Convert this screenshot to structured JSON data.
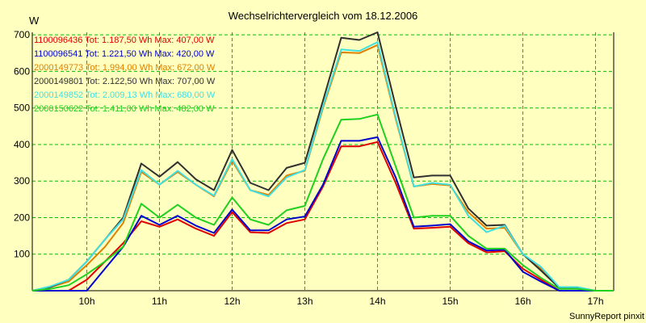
{
  "chart_data": {
    "type": "line",
    "title": "Wechselrichtervergleich vom 18.12.2006",
    "ylabel": "W",
    "xlabel": "",
    "credit": "SunnyReport pinxit",
    "ylim": [
      0,
      707
    ],
    "y_ticks": [
      100,
      200,
      300,
      400,
      500,
      600,
      700
    ],
    "x_range": [
      9.25,
      17.25
    ],
    "x_ticks": [
      {
        "value": 10,
        "label": "10h"
      },
      {
        "value": 11,
        "label": "11h"
      },
      {
        "value": 12,
        "label": "12h"
      },
      {
        "value": 13,
        "label": "13h"
      },
      {
        "value": 14,
        "label": "14h"
      },
      {
        "value": 15,
        "label": "15h"
      },
      {
        "value": 16,
        "label": "16h"
      },
      {
        "value": 17,
        "label": "17h"
      }
    ],
    "grid": true,
    "legend_position": "top-left",
    "x": [
      9.25,
      9.5,
      9.75,
      10,
      10.25,
      10.5,
      10.75,
      11,
      11.25,
      11.5,
      11.75,
      12,
      12.25,
      12.5,
      12.75,
      13,
      13.25,
      13.5,
      13.75,
      14,
      14.25,
      14.5,
      14.75,
      15,
      15.25,
      15.5,
      15.75,
      16,
      16.25,
      16.5,
      16.75,
      17,
      17.25
    ],
    "series": [
      {
        "name": "1100096436",
        "legend": "1100096436 Tot: 1.187,50 Wh Max: 407,00 W",
        "color": "#e00000",
        "values": [
          0,
          0,
          0,
          30,
          80,
          130,
          190,
          175,
          195,
          170,
          150,
          215,
          160,
          158,
          185,
          195,
          285,
          395,
          395,
          407,
          295,
          170,
          172,
          175,
          130,
          105,
          108,
          60,
          30,
          0,
          0,
          0,
          0
        ]
      },
      {
        "name": "1100096541",
        "legend": "1100096541 Tot: 1.221,50 Wh Max: 420,00 W",
        "color": "#0000d0",
        "values": [
          0,
          0,
          0,
          0,
          60,
          120,
          205,
          180,
          205,
          178,
          158,
          222,
          165,
          165,
          195,
          203,
          290,
          410,
          410,
          420,
          310,
          175,
          178,
          182,
          135,
          110,
          112,
          52,
          25,
          0,
          0,
          0,
          0
        ]
      },
      {
        "name": "2000149773",
        "legend": "2000149773 Tot: 1.994,00 Wh Max: 672,00 W",
        "color": "#e08000",
        "values": [
          0,
          10,
          25,
          70,
          120,
          185,
          325,
          290,
          325,
          290,
          258,
          355,
          275,
          262,
          315,
          328,
          500,
          652,
          650,
          672,
          470,
          285,
          292,
          288,
          215,
          170,
          172,
          100,
          60,
          8,
          8,
          0,
          0
        ]
      },
      {
        "name": "2000149801",
        "legend": "2000149801 Tot: 2.122,50 Wh Max: 707,00 W",
        "color": "#303030",
        "values": [
          0,
          10,
          30,
          80,
          140,
          200,
          348,
          312,
          352,
          305,
          275,
          385,
          295,
          275,
          336,
          350,
          520,
          692,
          686,
          707,
          505,
          310,
          315,
          315,
          225,
          178,
          180,
          100,
          55,
          8,
          8,
          0,
          0
        ]
      },
      {
        "name": "2000149852",
        "legend": "2000149852 Tot: 2.009,13 Wh Max: 680,00 W",
        "color": "#40e0e0",
        "values": [
          0,
          12,
          30,
          80,
          140,
          195,
          330,
          290,
          328,
          290,
          260,
          360,
          275,
          258,
          310,
          330,
          505,
          660,
          656,
          680,
          475,
          285,
          295,
          290,
          205,
          160,
          178,
          100,
          65,
          10,
          10,
          0,
          0
        ]
      },
      {
        "name": "2000150622",
        "legend": "2000150622 Tot: 1.411,00 Wh Max: 482,00 W",
        "color": "#20d020",
        "values": [
          0,
          5,
          15,
          45,
          80,
          120,
          238,
          200,
          235,
          200,
          180,
          255,
          195,
          180,
          220,
          232,
          360,
          468,
          470,
          482,
          340,
          200,
          205,
          205,
          150,
          115,
          115,
          70,
          35,
          5,
          5,
          0,
          0
        ]
      }
    ]
  }
}
